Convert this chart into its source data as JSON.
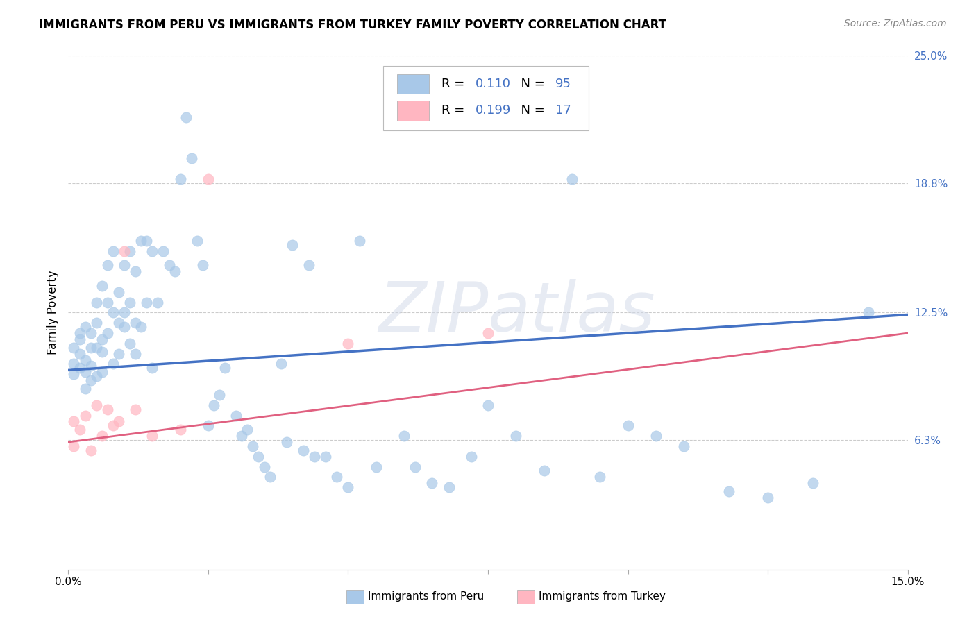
{
  "title": "IMMIGRANTS FROM PERU VS IMMIGRANTS FROM TURKEY FAMILY POVERTY CORRELATION CHART",
  "source": "Source: ZipAtlas.com",
  "ylabel": "Family Poverty",
  "x_min": 0.0,
  "x_max": 0.15,
  "y_min": 0.0,
  "y_max": 0.25,
  "y_tick_labels_right": [
    "6.3%",
    "12.5%",
    "18.8%",
    "25.0%"
  ],
  "y_tick_positions_right": [
    0.063,
    0.125,
    0.188,
    0.25
  ],
  "peru_color": "#A8C8E8",
  "peru_color_line": "#4472C4",
  "turkey_color": "#FFB6C1",
  "turkey_color_line": "#E06080",
  "peru_R": "0.110",
  "peru_N": "95",
  "turkey_R": "0.199",
  "turkey_N": "17",
  "legend_label_peru": "Immigrants from Peru",
  "legend_label_turkey": "Immigrants from Turkey",
  "peru_scatter_x": [
    0.001,
    0.001,
    0.001,
    0.002,
    0.002,
    0.002,
    0.002,
    0.003,
    0.003,
    0.003,
    0.003,
    0.004,
    0.004,
    0.004,
    0.004,
    0.005,
    0.005,
    0.005,
    0.005,
    0.006,
    0.006,
    0.006,
    0.006,
    0.007,
    0.007,
    0.007,
    0.008,
    0.008,
    0.008,
    0.009,
    0.009,
    0.009,
    0.01,
    0.01,
    0.01,
    0.011,
    0.011,
    0.011,
    0.012,
    0.012,
    0.012,
    0.013,
    0.013,
    0.014,
    0.014,
    0.015,
    0.015,
    0.016,
    0.017,
    0.018,
    0.019,
    0.02,
    0.021,
    0.022,
    0.023,
    0.024,
    0.025,
    0.026,
    0.027,
    0.028,
    0.03,
    0.031,
    0.032,
    0.033,
    0.034,
    0.035,
    0.036,
    0.038,
    0.039,
    0.04,
    0.042,
    0.043,
    0.044,
    0.046,
    0.048,
    0.05,
    0.052,
    0.055,
    0.06,
    0.062,
    0.065,
    0.068,
    0.072,
    0.075,
    0.08,
    0.085,
    0.09,
    0.095,
    0.1,
    0.105,
    0.11,
    0.118,
    0.125,
    0.133,
    0.143
  ],
  "peru_scatter_y": [
    0.1,
    0.108,
    0.095,
    0.112,
    0.098,
    0.105,
    0.115,
    0.102,
    0.118,
    0.088,
    0.096,
    0.115,
    0.092,
    0.108,
    0.099,
    0.12,
    0.094,
    0.13,
    0.108,
    0.112,
    0.096,
    0.106,
    0.138,
    0.148,
    0.115,
    0.13,
    0.155,
    0.125,
    0.1,
    0.135,
    0.12,
    0.105,
    0.148,
    0.118,
    0.125,
    0.155,
    0.13,
    0.11,
    0.145,
    0.12,
    0.105,
    0.16,
    0.118,
    0.16,
    0.13,
    0.155,
    0.098,
    0.13,
    0.155,
    0.148,
    0.145,
    0.19,
    0.22,
    0.2,
    0.16,
    0.148,
    0.07,
    0.08,
    0.085,
    0.098,
    0.075,
    0.065,
    0.068,
    0.06,
    0.055,
    0.05,
    0.045,
    0.1,
    0.062,
    0.158,
    0.058,
    0.148,
    0.055,
    0.055,
    0.045,
    0.04,
    0.16,
    0.05,
    0.065,
    0.05,
    0.042,
    0.04,
    0.055,
    0.08,
    0.065,
    0.048,
    0.19,
    0.045,
    0.07,
    0.065,
    0.06,
    0.038,
    0.035,
    0.042,
    0.125
  ],
  "turkey_scatter_x": [
    0.001,
    0.001,
    0.002,
    0.003,
    0.004,
    0.005,
    0.006,
    0.007,
    0.008,
    0.009,
    0.01,
    0.012,
    0.015,
    0.02,
    0.025,
    0.05,
    0.075
  ],
  "turkey_scatter_y": [
    0.06,
    0.072,
    0.068,
    0.075,
    0.058,
    0.08,
    0.065,
    0.078,
    0.07,
    0.072,
    0.155,
    0.078,
    0.065,
    0.068,
    0.19,
    0.11,
    0.115
  ],
  "peru_line_x": [
    0.0,
    0.15
  ],
  "peru_line_y": [
    0.097,
    0.124
  ],
  "turkey_line_x": [
    0.0,
    0.15
  ],
  "turkey_line_y": [
    0.062,
    0.115
  ],
  "watermark": "ZIPatlas",
  "background_color": "#ffffff",
  "grid_color": "#cccccc"
}
